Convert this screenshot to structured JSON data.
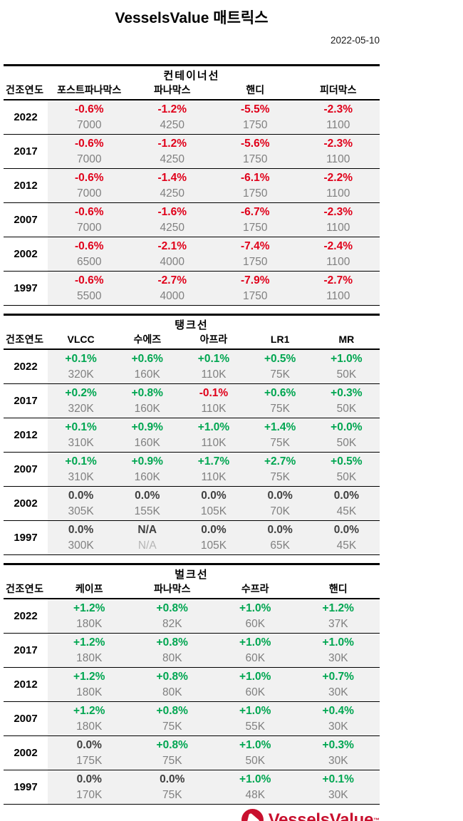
{
  "page": {
    "title": "VesselsValue 매트릭스",
    "date": "2022-05-10"
  },
  "colors": {
    "positive": "#00a651",
    "negative": "#e0001a",
    "neutral": "#404040",
    "subvalue": "#808080",
    "cell_bg": "#f1f1f1",
    "logo_red": "#c8102e"
  },
  "row_header_label": "건조연도",
  "tables": [
    {
      "title": "컨테이너선",
      "columns": [
        "포스트파나막스",
        "파나막스",
        "핸디",
        "피더막스"
      ],
      "rows": [
        {
          "year": "2022",
          "cells": [
            {
              "pct": "-0.6%",
              "val": "7000",
              "tone": "neg"
            },
            {
              "pct": "-1.2%",
              "val": "4250",
              "tone": "neg"
            },
            {
              "pct": "-5.5%",
              "val": "1750",
              "tone": "neg"
            },
            {
              "pct": "-2.3%",
              "val": "1100",
              "tone": "neg"
            }
          ]
        },
        {
          "year": "2017",
          "cells": [
            {
              "pct": "-0.6%",
              "val": "7000",
              "tone": "neg"
            },
            {
              "pct": "-1.2%",
              "val": "4250",
              "tone": "neg"
            },
            {
              "pct": "-5.6%",
              "val": "1750",
              "tone": "neg"
            },
            {
              "pct": "-2.3%",
              "val": "1100",
              "tone": "neg"
            }
          ]
        },
        {
          "year": "2012",
          "cells": [
            {
              "pct": "-0.6%",
              "val": "7000",
              "tone": "neg"
            },
            {
              "pct": "-1.4%",
              "val": "4250",
              "tone": "neg"
            },
            {
              "pct": "-6.1%",
              "val": "1750",
              "tone": "neg"
            },
            {
              "pct": "-2.2%",
              "val": "1100",
              "tone": "neg"
            }
          ]
        },
        {
          "year": "2007",
          "cells": [
            {
              "pct": "-0.6%",
              "val": "7000",
              "tone": "neg"
            },
            {
              "pct": "-1.6%",
              "val": "4250",
              "tone": "neg"
            },
            {
              "pct": "-6.7%",
              "val": "1750",
              "tone": "neg"
            },
            {
              "pct": "-2.3%",
              "val": "1100",
              "tone": "neg"
            }
          ]
        },
        {
          "year": "2002",
          "cells": [
            {
              "pct": "-0.6%",
              "val": "6500",
              "tone": "neg"
            },
            {
              "pct": "-2.1%",
              "val": "4000",
              "tone": "neg"
            },
            {
              "pct": "-7.4%",
              "val": "1750",
              "tone": "neg"
            },
            {
              "pct": "-2.4%",
              "val": "1100",
              "tone": "neg"
            }
          ]
        },
        {
          "year": "1997",
          "cells": [
            {
              "pct": "-0.6%",
              "val": "5500",
              "tone": "neg"
            },
            {
              "pct": "-2.7%",
              "val": "4000",
              "tone": "neg"
            },
            {
              "pct": "-7.9%",
              "val": "1750",
              "tone": "neg"
            },
            {
              "pct": "-2.7%",
              "val": "1100",
              "tone": "neg"
            }
          ]
        }
      ]
    },
    {
      "title": "탱크선",
      "columns": [
        "VLCC",
        "수에즈",
        "아프라",
        "LR1",
        "MR"
      ],
      "rows": [
        {
          "year": "2022",
          "cells": [
            {
              "pct": "+0.1%",
              "val": "320K",
              "tone": "pos"
            },
            {
              "pct": "+0.6%",
              "val": "160K",
              "tone": "pos"
            },
            {
              "pct": "+0.1%",
              "val": "110K",
              "tone": "pos"
            },
            {
              "pct": "+0.5%",
              "val": "75K",
              "tone": "pos"
            },
            {
              "pct": "+1.0%",
              "val": "50K",
              "tone": "pos"
            }
          ]
        },
        {
          "year": "2017",
          "cells": [
            {
              "pct": "+0.2%",
              "val": "320K",
              "tone": "pos"
            },
            {
              "pct": "+0.8%",
              "val": "160K",
              "tone": "pos"
            },
            {
              "pct": "-0.1%",
              "val": "110K",
              "tone": "neg"
            },
            {
              "pct": "+0.6%",
              "val": "75K",
              "tone": "pos"
            },
            {
              "pct": "+0.3%",
              "val": "50K",
              "tone": "pos"
            }
          ]
        },
        {
          "year": "2012",
          "cells": [
            {
              "pct": "+0.1%",
              "val": "310K",
              "tone": "pos"
            },
            {
              "pct": "+0.9%",
              "val": "160K",
              "tone": "pos"
            },
            {
              "pct": "+1.0%",
              "val": "110K",
              "tone": "pos"
            },
            {
              "pct": "+1.4%",
              "val": "75K",
              "tone": "pos"
            },
            {
              "pct": "+0.0%",
              "val": "50K",
              "tone": "pos"
            }
          ]
        },
        {
          "year": "2007",
          "cells": [
            {
              "pct": "+0.1%",
              "val": "310K",
              "tone": "pos"
            },
            {
              "pct": "+0.9%",
              "val": "160K",
              "tone": "pos"
            },
            {
              "pct": "+1.7%",
              "val": "110K",
              "tone": "pos"
            },
            {
              "pct": "+2.7%",
              "val": "75K",
              "tone": "pos"
            },
            {
              "pct": "+0.5%",
              "val": "50K",
              "tone": "pos"
            }
          ]
        },
        {
          "year": "2002",
          "cells": [
            {
              "pct": "0.0%",
              "val": "305K",
              "tone": "neu"
            },
            {
              "pct": "0.0%",
              "val": "155K",
              "tone": "neu"
            },
            {
              "pct": "0.0%",
              "val": "105K",
              "tone": "neu"
            },
            {
              "pct": "0.0%",
              "val": "70K",
              "tone": "neu"
            },
            {
              "pct": "0.0%",
              "val": "45K",
              "tone": "neu"
            }
          ]
        },
        {
          "year": "1997",
          "cells": [
            {
              "pct": "0.0%",
              "val": "300K",
              "tone": "neu"
            },
            {
              "pct": "N/A",
              "val": "N/A",
              "tone": "neu",
              "na": true
            },
            {
              "pct": "0.0%",
              "val": "105K",
              "tone": "neu"
            },
            {
              "pct": "0.0%",
              "val": "65K",
              "tone": "neu"
            },
            {
              "pct": "0.0%",
              "val": "45K",
              "tone": "neu"
            }
          ]
        }
      ]
    },
    {
      "title": "벌크선",
      "columns": [
        "케이프",
        "파나막스",
        "수프라",
        "핸디"
      ],
      "rows": [
        {
          "year": "2022",
          "cells": [
            {
              "pct": "+1.2%",
              "val": "180K",
              "tone": "pos"
            },
            {
              "pct": "+0.8%",
              "val": "82K",
              "tone": "pos"
            },
            {
              "pct": "+1.0%",
              "val": "60K",
              "tone": "pos"
            },
            {
              "pct": "+1.2%",
              "val": "37K",
              "tone": "pos"
            }
          ]
        },
        {
          "year": "2017",
          "cells": [
            {
              "pct": "+1.2%",
              "val": "180K",
              "tone": "pos"
            },
            {
              "pct": "+0.8%",
              "val": "80K",
              "tone": "pos"
            },
            {
              "pct": "+1.0%",
              "val": "60K",
              "tone": "pos"
            },
            {
              "pct": "+1.0%",
              "val": "30K",
              "tone": "pos"
            }
          ]
        },
        {
          "year": "2012",
          "cells": [
            {
              "pct": "+1.2%",
              "val": "180K",
              "tone": "pos"
            },
            {
              "pct": "+0.8%",
              "val": "80K",
              "tone": "pos"
            },
            {
              "pct": "+1.0%",
              "val": "60K",
              "tone": "pos"
            },
            {
              "pct": "+0.7%",
              "val": "30K",
              "tone": "pos"
            }
          ]
        },
        {
          "year": "2007",
          "cells": [
            {
              "pct": "+1.2%",
              "val": "180K",
              "tone": "pos"
            },
            {
              "pct": "+0.8%",
              "val": "75K",
              "tone": "pos"
            },
            {
              "pct": "+1.0%",
              "val": "55K",
              "tone": "pos"
            },
            {
              "pct": "+0.4%",
              "val": "30K",
              "tone": "pos"
            }
          ]
        },
        {
          "year": "2002",
          "cells": [
            {
              "pct": "0.0%",
              "val": "175K",
              "tone": "neu"
            },
            {
              "pct": "+0.8%",
              "val": "75K",
              "tone": "pos"
            },
            {
              "pct": "+1.0%",
              "val": "50K",
              "tone": "pos"
            },
            {
              "pct": "+0.3%",
              "val": "30K",
              "tone": "pos"
            }
          ]
        },
        {
          "year": "1997",
          "cells": [
            {
              "pct": "0.0%",
              "val": "170K",
              "tone": "neu"
            },
            {
              "pct": "0.0%",
              "val": "75K",
              "tone": "neu"
            },
            {
              "pct": "+1.0%",
              "val": "48K",
              "tone": "pos"
            },
            {
              "pct": "+0.1%",
              "val": "30K",
              "tone": "pos"
            }
          ]
        }
      ]
    }
  ],
  "footer": {
    "logo_text": "VesselsValue",
    "trademark": "™"
  }
}
